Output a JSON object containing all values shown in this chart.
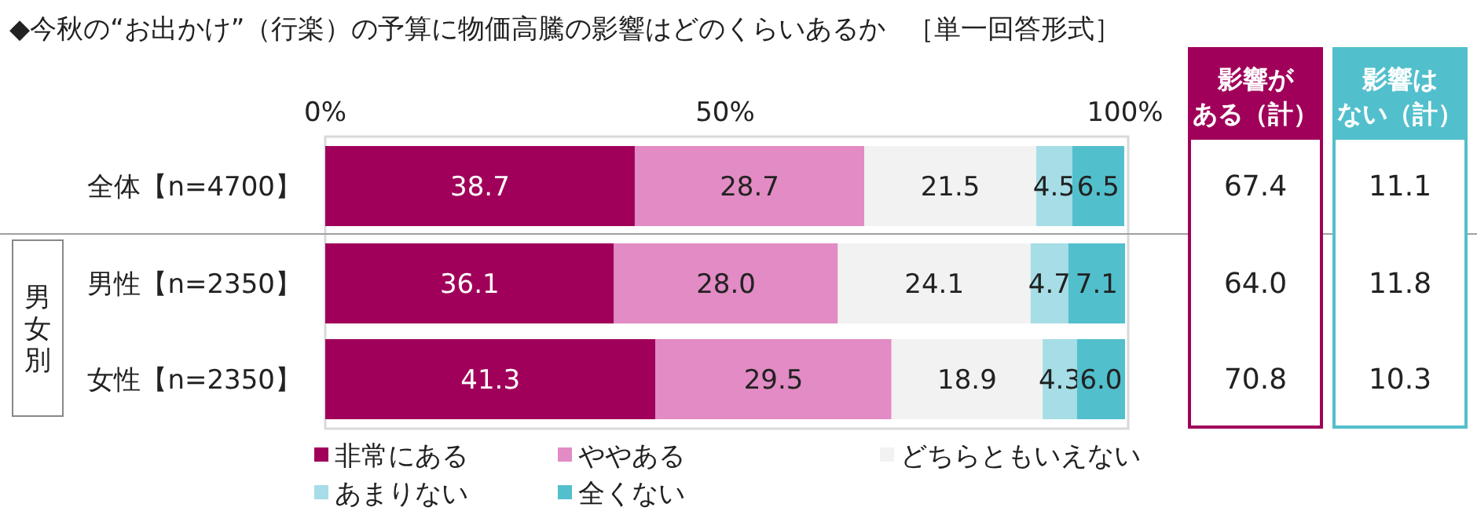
{
  "chart_data": [
    {
      "type": "bar",
      "orientation": "horizontal",
      "stacked": true,
      "title": "◆今秋の“お出かけ”（行楽）の予算に物価高騰の影響はどのくらいあるか",
      "subtitle": "［単一回答形式］",
      "categories": [
        "全体【n=4700】",
        "男性【n=2350】",
        "女性【n=2350】"
      ],
      "series": [
        {
          "name": "非常にある",
          "color": "#a0005a",
          "values": [
            38.7,
            36.1,
            41.3
          ],
          "value_labels": [
            "38.7",
            "36.1",
            "41.3"
          ]
        },
        {
          "name": "ややある",
          "color": "#e28bc4",
          "values": [
            28.7,
            28.0,
            29.5
          ],
          "value_labels": [
            "28.7",
            "28.0",
            "29.5"
          ]
        },
        {
          "name": "どちらともいえない",
          "color": "#f2f2f2",
          "values": [
            21.5,
            24.1,
            18.9
          ],
          "value_labels": [
            "21.5",
            "24.1",
            "18.9"
          ]
        },
        {
          "name": "あまりない",
          "color": "#a6dde6",
          "values": [
            4.5,
            4.7,
            4.3
          ],
          "value_labels": [
            "4.5",
            "4.7",
            "4.3"
          ]
        },
        {
          "name": "全くない",
          "color": "#52bfcc",
          "values": [
            6.5,
            7.1,
            6.0
          ],
          "value_labels": [
            "6.5",
            "7.1",
            "6.0"
          ]
        }
      ],
      "xlim": [
        0,
        100
      ],
      "xticks": [
        {
          "value": 0,
          "label": "0%"
        },
        {
          "value": 50,
          "label": "50%"
        },
        {
          "value": 100,
          "label": "100%"
        }
      ],
      "legend": "bottom",
      "annotations": [
        "男女別"
      ]
    },
    {
      "type": "other",
      "title": "影響がある（計）",
      "color": "#a0005a",
      "value_labels": [
        "67.4",
        "64.0",
        "70.8"
      ]
    },
    {
      "type": "other",
      "title": "影響はない（計）",
      "color": "#52bfcc",
      "value_labels": [
        "11.1",
        "11.8",
        "10.3"
      ]
    }
  ]
}
